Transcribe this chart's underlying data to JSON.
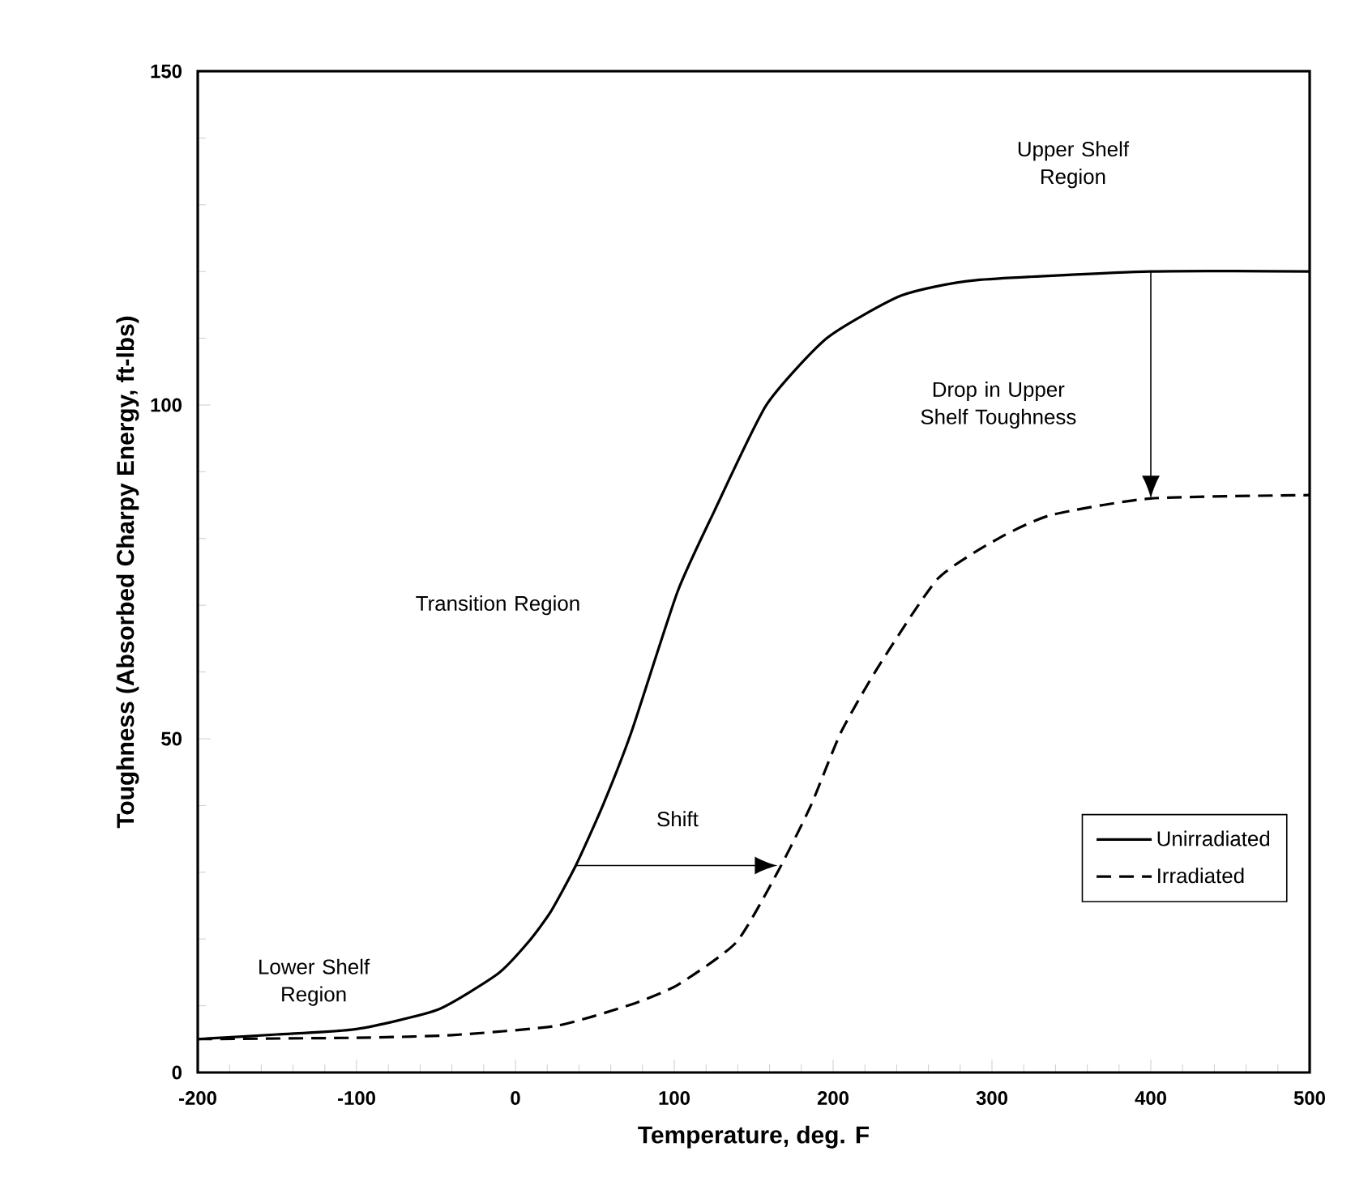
{
  "chart_data": {
    "type": "line",
    "xlabel": "Temperature, deg. F",
    "ylabel": "Toughness (Absorbed Charpy Energy, ft-lbs)",
    "xlim": [
      -200,
      500
    ],
    "ylim": [
      0,
      150
    ],
    "xticks": [
      -200,
      -100,
      0,
      100,
      200,
      300,
      400,
      500
    ],
    "yticks": [
      0,
      50,
      100,
      150
    ],
    "legend": "bottom right",
    "grid": false,
    "marker": "none",
    "series": [
      {
        "name": "Unirradiated",
        "color": "#000000",
        "line_style": "solid",
        "x": [
          -200,
          -150,
          -100,
          -49,
          -11,
          8,
          22,
          38,
          55,
          73,
          102,
          125,
          158,
          196,
          243,
          290,
          400,
          500
        ],
        "values": [
          5,
          5.7,
          6.5,
          9.4,
          14.8,
          19.5,
          24,
          31,
          40,
          51,
          72,
          84,
          100,
          110,
          116.4,
          118.7,
          120,
          120
        ]
      },
      {
        "name": "Irradiated",
        "color": "#000000",
        "line_style": "dashed",
        "x": [
          -200,
          -100,
          -40,
          26,
          73,
          102,
          139,
          165,
          186,
          205,
          229,
          266,
          304,
          337,
          400,
          500
        ],
        "values": [
          5,
          5.2,
          5.6,
          7,
          10.2,
          13.1,
          19.5,
          30,
          40,
          51,
          61,
          74,
          80,
          83.5,
          86,
          86.5
        ]
      }
    ],
    "annotations": [
      "Upper Shelf Region",
      "Drop in Upper Shelf Toughness",
      "Transition Region",
      "Shift",
      "Lower Shelf Region"
    ]
  }
}
